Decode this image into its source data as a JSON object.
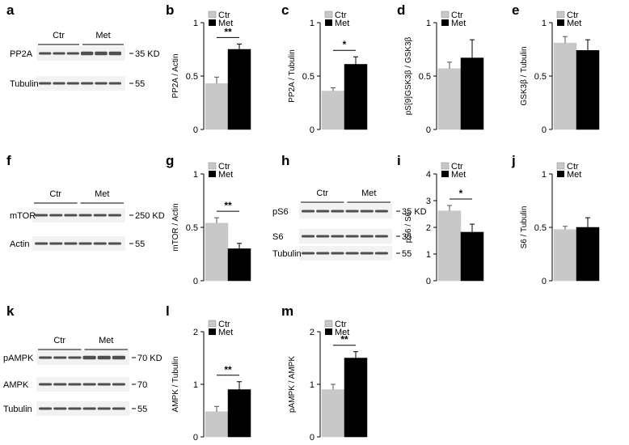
{
  "colors": {
    "ctr": "#c8c8c8",
    "met": "#000000",
    "axis": "#000000",
    "blot_bg": "#f2f2f2",
    "band": "#333333"
  },
  "legend": {
    "ctr": "Ctr",
    "met": "Met"
  },
  "panel_letters": [
    "a",
    "b",
    "c",
    "d",
    "e",
    "f",
    "g",
    "h",
    "i",
    "j",
    "k",
    "l",
    "m"
  ],
  "blots": {
    "a": {
      "groups": [
        "Ctr",
        "Met"
      ],
      "rows": [
        {
          "name": "PP2A",
          "marker": "35 KD"
        },
        {
          "name": "Tubulin",
          "marker": "55"
        }
      ]
    },
    "f": {
      "groups": [
        "Ctr",
        "Met"
      ],
      "rows": [
        {
          "name": "mTOR",
          "marker": "250 KD"
        },
        {
          "name": "Actin",
          "marker": "55"
        }
      ]
    },
    "h": {
      "groups": [
        "Ctr",
        "Met"
      ],
      "rows": [
        {
          "name": "pS6",
          "marker": "35 KD"
        },
        {
          "name": "S6",
          "marker": "35"
        },
        {
          "name": "Tubulin",
          "marker": "55"
        }
      ]
    },
    "k": {
      "groups": [
        "Ctr",
        "Met"
      ],
      "rows": [
        {
          "name": "pAMPK",
          "marker": "70 KD"
        },
        {
          "name": "AMPK",
          "marker": "70"
        },
        {
          "name": "Tubulin",
          "marker": "55"
        }
      ]
    }
  },
  "chart_data": [
    {
      "panel": "b",
      "type": "bar",
      "categories": [
        "Ctr",
        "Met"
      ],
      "values": [
        0.43,
        0.75
      ],
      "errors": [
        0.06,
        0.05
      ],
      "ylabel": "PP2A / Actin",
      "ylim": [
        0,
        1
      ],
      "yticks": [
        "0",
        "0.5",
        "1"
      ],
      "significance": "**"
    },
    {
      "panel": "c",
      "type": "bar",
      "categories": [
        "Ctr",
        "Met"
      ],
      "values": [
        0.36,
        0.61
      ],
      "errors": [
        0.03,
        0.07
      ],
      "ylabel": "PP2A / Tubulin",
      "ylim": [
        0,
        1
      ],
      "yticks": [
        "0",
        "0.5",
        "1"
      ],
      "significance": "*"
    },
    {
      "panel": "d",
      "type": "bar",
      "categories": [
        "Ctr",
        "Met"
      ],
      "values": [
        0.57,
        0.67
      ],
      "errors": [
        0.06,
        0.17
      ],
      "ylabel": "pS[9]GSK3β / GSK3β",
      "ylim": [
        0,
        1
      ],
      "yticks": [
        "0",
        "0.5",
        "1"
      ],
      "significance": ""
    },
    {
      "panel": "e",
      "type": "bar",
      "categories": [
        "Ctr",
        "Met"
      ],
      "values": [
        0.81,
        0.74
      ],
      "errors": [
        0.06,
        0.1
      ],
      "ylabel": "GSK3β / Tubulin",
      "ylim": [
        0,
        1
      ],
      "yticks": [
        "0",
        "0.5",
        "1"
      ],
      "significance": ""
    },
    {
      "panel": "g",
      "type": "bar",
      "categories": [
        "Ctr",
        "Met"
      ],
      "values": [
        0.54,
        0.3
      ],
      "errors": [
        0.05,
        0.05
      ],
      "ylabel": "mTOR / Actin",
      "ylim": [
        0,
        1
      ],
      "yticks": [
        "0",
        "0.5",
        "1"
      ],
      "significance": "**"
    },
    {
      "panel": "i",
      "type": "bar",
      "categories": [
        "Ctr",
        "Met"
      ],
      "values": [
        2.62,
        1.82
      ],
      "errors": [
        0.2,
        0.3
      ],
      "ylabel": "pS6 / S6",
      "ylim": [
        0,
        4
      ],
      "yticks": [
        "0",
        "1",
        "2",
        "3",
        "4"
      ],
      "significance": "*"
    },
    {
      "panel": "j",
      "type": "bar",
      "categories": [
        "Ctr",
        "Met"
      ],
      "values": [
        0.48,
        0.5
      ],
      "errors": [
        0.03,
        0.09
      ],
      "ylabel": "S6 / Tubulin",
      "ylim": [
        0,
        1
      ],
      "yticks": [
        "0",
        "0.5",
        "1"
      ],
      "significance": ""
    },
    {
      "panel": "l",
      "type": "bar",
      "categories": [
        "Ctr",
        "Met"
      ],
      "values": [
        0.48,
        0.9
      ],
      "errors": [
        0.1,
        0.15
      ],
      "ylabel": "AMPK / Tubulin",
      "ylim": [
        0,
        2
      ],
      "yticks": [
        "0",
        "1",
        "2"
      ],
      "significance": "**"
    },
    {
      "panel": "m",
      "type": "bar",
      "categories": [
        "Ctr",
        "Met"
      ],
      "values": [
        0.9,
        1.5
      ],
      "errors": [
        0.1,
        0.12
      ],
      "ylabel": "pAMPK / AMPK",
      "ylim": [
        0,
        2
      ],
      "yticks": [
        "0",
        "1",
        "2"
      ],
      "significance": "**"
    }
  ]
}
